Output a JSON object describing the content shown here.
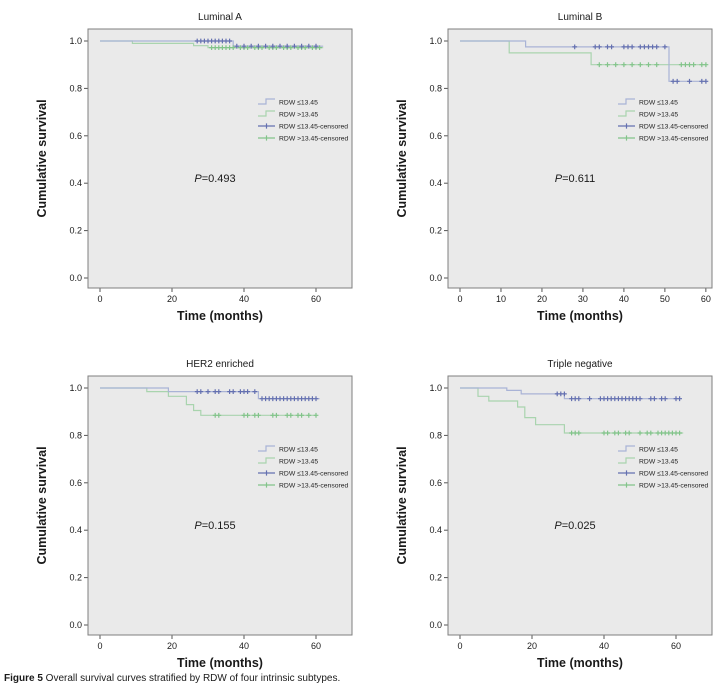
{
  "figure": {
    "caption_label": "Figure 5",
    "caption_text": " Overall survival curves stratified by RDW of four intrinsic subtypes."
  },
  "colors": {
    "blue_line": "#a9b3d6",
    "green_line": "#a9d4ae",
    "blue_censored": "#6470b0",
    "green_censored": "#82c48a",
    "plot_bg": "#eaeaea",
    "frame": "#7f7f7f",
    "text": "#1a1a1a"
  },
  "legend": {
    "items": [
      {
        "label": "RDW ≤13.45",
        "series": "blue",
        "style": "line"
      },
      {
        "label": "RDW >13.45",
        "series": "green",
        "style": "line"
      },
      {
        "label": "RDW ≤13.45-censored",
        "series": "blue",
        "style": "plus"
      },
      {
        "label": "RDW >13.45-censored",
        "series": "green",
        "style": "plus"
      }
    ]
  },
  "chart_data": [
    {
      "type": "line",
      "variant": "kaplan_meier_step",
      "title": "Luminal A",
      "xlabel": "Time (months)",
      "ylabel": "Cumulative survival",
      "p_label": "P=0.493",
      "x_ticks": [
        0,
        20,
        40,
        60
      ],
      "y_ticks": [
        "0.0",
        "0.2",
        "0.4",
        "0.6",
        "0.8",
        "1.0"
      ],
      "x_range": [
        0,
        70
      ],
      "y_range": [
        0,
        1.05
      ],
      "grid": false,
      "legend_position": "center-right",
      "series": [
        {
          "name": "RDW ≤13.45",
          "color": "blue",
          "steps": [
            [
              0,
              1.0
            ],
            [
              37,
              1.0
            ],
            [
              37,
              0.978
            ],
            [
              62,
              0.978
            ]
          ],
          "censored": [
            {
              "y": 1.0,
              "x": [
                27,
                28,
                29,
                30,
                31,
                32,
                33,
                34,
                35,
                36
              ]
            },
            {
              "y": 0.978,
              "x": [
                38,
                40,
                42,
                44,
                46,
                48,
                50,
                52,
                54,
                56,
                58,
                60
              ]
            }
          ]
        },
        {
          "name": "RDW >13.45",
          "color": "green",
          "steps": [
            [
              0,
              1.0
            ],
            [
              9,
              1.0
            ],
            [
              9,
              0.99
            ],
            [
              26,
              0.99
            ],
            [
              26,
              0.98
            ],
            [
              30,
              0.98
            ],
            [
              30,
              0.972
            ],
            [
              62,
              0.972
            ]
          ],
          "censored": [
            {
              "y": 0.972,
              "x": [
                31,
                32,
                33,
                34,
                35,
                36,
                37,
                39,
                40,
                41,
                43,
                44,
                45,
                47,
                48,
                49,
                51,
                52,
                53,
                55,
                56,
                57,
                59,
                60,
                61
              ]
            }
          ]
        }
      ]
    },
    {
      "type": "line",
      "variant": "kaplan_meier_step",
      "title": "Luminal B",
      "xlabel": "Time (months)",
      "ylabel": "Cumulative survival",
      "p_label": "P=0.611",
      "x_ticks": [
        0,
        10,
        20,
        30,
        40,
        50,
        60
      ],
      "y_ticks": [
        "0.0",
        "0.2",
        "0.4",
        "0.6",
        "0.8",
        "1.0"
      ],
      "x_range": [
        0,
        61.5
      ],
      "y_range": [
        0,
        1.05
      ],
      "grid": false,
      "legend_position": "center-right",
      "series": [
        {
          "name": "RDW ≤13.45",
          "color": "blue",
          "steps": [
            [
              0,
              1.0
            ],
            [
              16,
              1.0
            ],
            [
              16,
              0.975
            ],
            [
              51,
              0.975
            ],
            [
              51,
              0.83
            ],
            [
              60,
              0.83
            ]
          ],
          "censored": [
            {
              "y": 0.975,
              "x": [
                28,
                33,
                34,
                36,
                37,
                40,
                41,
                42,
                44,
                45,
                46,
                47,
                48,
                50
              ]
            },
            {
              "y": 0.83,
              "x": [
                52,
                53,
                56,
                59,
                60
              ]
            }
          ]
        },
        {
          "name": "RDW >13.45",
          "color": "green",
          "steps": [
            [
              0,
              1.0
            ],
            [
              12,
              1.0
            ],
            [
              12,
              0.95
            ],
            [
              32,
              0.95
            ],
            [
              32,
              0.9
            ],
            [
              60,
              0.9
            ]
          ],
          "censored": [
            {
              "y": 0.9,
              "x": [
                34,
                36,
                38,
                40,
                42,
                44,
                46,
                48,
                54,
                55,
                56,
                57,
                59,
                60
              ]
            }
          ]
        }
      ]
    },
    {
      "type": "line",
      "variant": "kaplan_meier_step",
      "title": "HER2 enriched",
      "xlabel": "Time (months)",
      "ylabel": "Cumulative survival",
      "p_label": "P=0.155",
      "x_ticks": [
        0,
        20,
        40,
        60
      ],
      "y_ticks": [
        "0.0",
        "0.2",
        "0.4",
        "0.6",
        "0.8",
        "1.0"
      ],
      "x_range": [
        0,
        70
      ],
      "y_range": [
        0,
        1.05
      ],
      "grid": false,
      "legend_position": "center-right",
      "series": [
        {
          "name": "RDW ≤13.45",
          "color": "blue",
          "steps": [
            [
              0,
              1.0
            ],
            [
              19,
              1.0
            ],
            [
              19,
              0.985
            ],
            [
              44,
              0.985
            ],
            [
              44,
              0.955
            ],
            [
              61,
              0.955
            ]
          ],
          "censored": [
            {
              "y": 0.985,
              "x": [
                27,
                28,
                30,
                32,
                33,
                36,
                37,
                39,
                40,
                41,
                43
              ]
            },
            {
              "y": 0.955,
              "x": [
                45,
                46,
                47,
                48,
                49,
                50,
                51,
                52,
                53,
                54,
                55,
                56,
                57,
                58,
                59,
                60
              ]
            }
          ]
        },
        {
          "name": "RDW >13.45",
          "color": "green",
          "steps": [
            [
              0,
              1.0
            ],
            [
              13,
              1.0
            ],
            [
              13,
              0.985
            ],
            [
              19,
              0.985
            ],
            [
              19,
              0.965
            ],
            [
              24,
              0.965
            ],
            [
              24,
              0.93
            ],
            [
              26,
              0.93
            ],
            [
              26,
              0.905
            ],
            [
              28,
              0.905
            ],
            [
              28,
              0.885
            ],
            [
              60,
              0.885
            ]
          ],
          "censored": [
            {
              "y": 0.885,
              "x": [
                32,
                33,
                40,
                41,
                43,
                44,
                48,
                49,
                52,
                53,
                55,
                56,
                58,
                60
              ]
            }
          ]
        }
      ]
    },
    {
      "type": "line",
      "variant": "kaplan_meier_step",
      "title": "Triple negative",
      "xlabel": "Time (months)",
      "ylabel": "Cumulative survival",
      "p_label": "P=0.025",
      "x_ticks": [
        0,
        20,
        40,
        60
      ],
      "y_ticks": [
        "0.0",
        "0.2",
        "0.4",
        "0.6",
        "0.8",
        "1.0"
      ],
      "x_range": [
        0,
        70
      ],
      "y_range": [
        0,
        1.05
      ],
      "grid": false,
      "legend_position": "center-right",
      "series": [
        {
          "name": "RDW ≤13.45",
          "color": "blue",
          "steps": [
            [
              0,
              1.0
            ],
            [
              13,
              1.0
            ],
            [
              13,
              0.99
            ],
            [
              17,
              0.99
            ],
            [
              17,
              0.975
            ],
            [
              29,
              0.975
            ],
            [
              29,
              0.955
            ],
            [
              61,
              0.955
            ]
          ],
          "censored": [
            {
              "y": 0.975,
              "x": [
                27,
                28,
                29
              ]
            },
            {
              "y": 0.955,
              "x": [
                31,
                32,
                33,
                36,
                39,
                40,
                41,
                42,
                43,
                44,
                45,
                46,
                47,
                48,
                49,
                50,
                53,
                54,
                56,
                57,
                60,
                61
              ]
            }
          ]
        },
        {
          "name": "RDW >13.45",
          "color": "green",
          "steps": [
            [
              0,
              1.0
            ],
            [
              5,
              1.0
            ],
            [
              5,
              0.965
            ],
            [
              8,
              0.965
            ],
            [
              8,
              0.945
            ],
            [
              16,
              0.945
            ],
            [
              16,
              0.92
            ],
            [
              18,
              0.92
            ],
            [
              18,
              0.875
            ],
            [
              21,
              0.875
            ],
            [
              21,
              0.845
            ],
            [
              29,
              0.845
            ],
            [
              29,
              0.81
            ],
            [
              62,
              0.81
            ]
          ],
          "censored": [
            {
              "y": 0.81,
              "x": [
                31,
                32,
                33,
                40,
                41,
                43,
                44,
                46,
                47,
                50,
                52,
                53,
                55,
                56,
                57,
                58,
                59,
                60,
                61
              ]
            }
          ]
        }
      ]
    }
  ]
}
